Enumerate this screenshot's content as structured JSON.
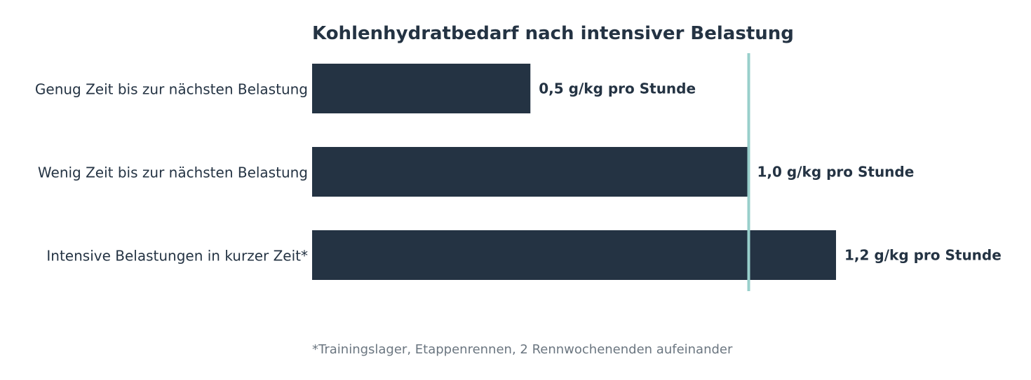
{
  "chart_data": {
    "type": "bar",
    "orientation": "horizontal",
    "title": "Kohlenhydratbedarf nach intensiver Belastung",
    "categories": [
      "Genug Zeit bis zur nächsten Belastung",
      "Wenig Zeit bis zur nächsten Belastung",
      "Intensive Belastungen in kurzer Zeit*"
    ],
    "values": [
      0.5,
      1.0,
      1.2
    ],
    "value_labels": [
      "0,5 g/kg pro Stunde",
      "1,0 g/kg pro Stunde",
      "1,2 g/kg pro Stunde"
    ],
    "reference_line": 1.0,
    "xlim": [
      0,
      1.2
    ],
    "grid": false,
    "footnote": "*Trainingslager, Etappenrennen, 2 Rennwochenenden aufeinander"
  },
  "colors": {
    "bar": "#243343",
    "text": "#243343",
    "reference_line": "#98cfcb",
    "footnote": "#6b7680"
  }
}
